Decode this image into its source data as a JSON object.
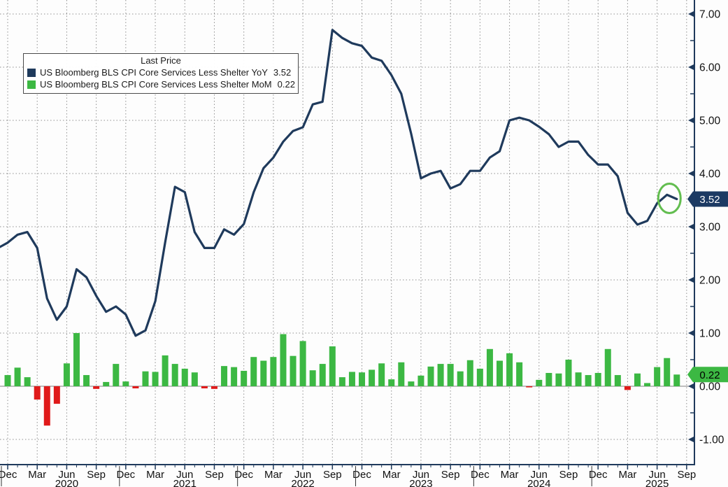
{
  "legend": {
    "title": "Last Price",
    "series": [
      {
        "label": "US Bloomberg BLS CPI Core Services Less Shelter YoY",
        "value": "3.52"
      },
      {
        "label": "US Bloomberg BLS CPI Core Services Less Shelter MoM",
        "value": "0.22"
      }
    ]
  },
  "badges": {
    "yoy": "3.52",
    "mom": "0.22"
  },
  "colors": {
    "line": "#1f3a5c",
    "bar_pos": "#3cb843",
    "bar_neg": "#e01a1a",
    "badge_yoy_bg": "#1c3a63",
    "badge_yoy_text": "#ffffff",
    "badge_mom_bg": "#3cb843",
    "badge_mom_text": "#000000",
    "axis": "#1f3a5c",
    "grid": "#8f8f8f",
    "text": "#111111",
    "annotation": "#62bd4f",
    "zero_line": "#808080"
  },
  "chart_data": {
    "type": "mixed",
    "title": "",
    "grid": "dotted",
    "legend_position": "top-left",
    "ylim": [
      -1.47,
      7.26
    ],
    "y_tick_labels": [
      "7.00",
      "6.00",
      "5.00",
      "4.00",
      "3.00",
      "2.00",
      "1.00",
      "0.00",
      "-1.00"
    ],
    "y_tick_values": [
      7,
      6,
      5,
      4,
      3,
      2,
      1,
      0,
      -1
    ],
    "x_quarter_labels": [
      "Dec",
      "Mar",
      "Jun",
      "Sep",
      "Dec",
      "Mar",
      "Jun",
      "Sep",
      "Dec",
      "Mar",
      "Jun",
      "Sep",
      "Dec",
      "Mar",
      "Jun",
      "Sep",
      "Dec",
      "Mar",
      "Jun",
      "Sep",
      "Dec",
      "Mar",
      "Jun",
      "Sep"
    ],
    "year_labels": [
      "2020",
      "2021",
      "2022",
      "2023",
      "2024",
      "2025"
    ],
    "year_month_index": [
      6,
      18,
      30,
      42,
      54,
      66
    ],
    "months": [
      "2019-12",
      "2020-01",
      "2020-02",
      "2020-03",
      "2020-04",
      "2020-05",
      "2020-06",
      "2020-07",
      "2020-08",
      "2020-09",
      "2020-10",
      "2020-11",
      "2020-12",
      "2021-01",
      "2021-02",
      "2021-03",
      "2021-04",
      "2021-05",
      "2021-06",
      "2021-07",
      "2021-08",
      "2021-09",
      "2021-10",
      "2021-11",
      "2021-12",
      "2022-01",
      "2022-02",
      "2022-03",
      "2022-04",
      "2022-05",
      "2022-06",
      "2022-07",
      "2022-08",
      "2022-09",
      "2022-10",
      "2022-11",
      "2022-12",
      "2023-01",
      "2023-02",
      "2023-03",
      "2023-04",
      "2023-05",
      "2023-06",
      "2023-07",
      "2023-08",
      "2023-09",
      "2023-10",
      "2023-11",
      "2023-12",
      "2024-01",
      "2024-02",
      "2024-03",
      "2024-04",
      "2024-05",
      "2024-06",
      "2024-07",
      "2024-08",
      "2024-09",
      "2024-10",
      "2024-11",
      "2024-12",
      "2025-01",
      "2025-02",
      "2025-03",
      "2025-04",
      "2025-05",
      "2025-06",
      "2025-07",
      "2025-08"
    ],
    "series": [
      {
        "name": "US Bloomberg BLS CPI Core Services Less Shelter YoY",
        "type": "line",
        "last": 3.52,
        "values": [
          2.7,
          2.85,
          2.9,
          2.6,
          1.65,
          1.25,
          1.5,
          2.2,
          2.05,
          1.7,
          1.4,
          1.5,
          1.35,
          0.95,
          1.05,
          1.6,
          2.7,
          3.75,
          3.65,
          2.9,
          2.6,
          2.6,
          2.95,
          2.85,
          3.05,
          3.65,
          4.1,
          4.3,
          4.6,
          4.8,
          4.87,
          5.3,
          5.35,
          6.7,
          6.55,
          6.45,
          6.4,
          6.18,
          6.12,
          5.85,
          5.5,
          4.75,
          3.91,
          4.0,
          4.05,
          3.72,
          3.8,
          4.05,
          4.05,
          4.3,
          4.42,
          5.0,
          5.05,
          5.0,
          4.88,
          4.74,
          4.5,
          4.6,
          4.6,
          4.35,
          4.17,
          4.17,
          3.95,
          3.26,
          3.04,
          3.11,
          3.44,
          3.6,
          3.52
        ]
      },
      {
        "name": "US Bloomberg BLS CPI Core Services Less Shelter MoM",
        "type": "bar",
        "last": 0.22,
        "values": [
          0.21,
          0.35,
          0.17,
          -0.25,
          -0.74,
          -0.33,
          0.43,
          1.0,
          0.21,
          -0.05,
          0.08,
          0.42,
          0.09,
          -0.04,
          0.28,
          0.27,
          0.58,
          0.42,
          0.33,
          0.26,
          -0.04,
          -0.05,
          0.38,
          0.36,
          0.29,
          0.55,
          0.48,
          0.55,
          0.98,
          0.57,
          0.85,
          0.3,
          0.42,
          0.75,
          0.17,
          0.27,
          0.26,
          0.31,
          0.43,
          0.13,
          0.45,
          0.09,
          0.2,
          0.37,
          0.42,
          0.42,
          0.28,
          0.49,
          0.33,
          0.7,
          0.48,
          0.62,
          0.45,
          -0.02,
          0.12,
          0.25,
          0.24,
          0.5,
          0.26,
          0.21,
          0.25,
          0.7,
          0.21,
          -0.07,
          0.24,
          0.06,
          0.36,
          0.53,
          0.22
        ]
      }
    ],
    "annotation": {
      "type": "ellipse",
      "month": "2025-08",
      "note": "circle around last YoY point"
    }
  }
}
